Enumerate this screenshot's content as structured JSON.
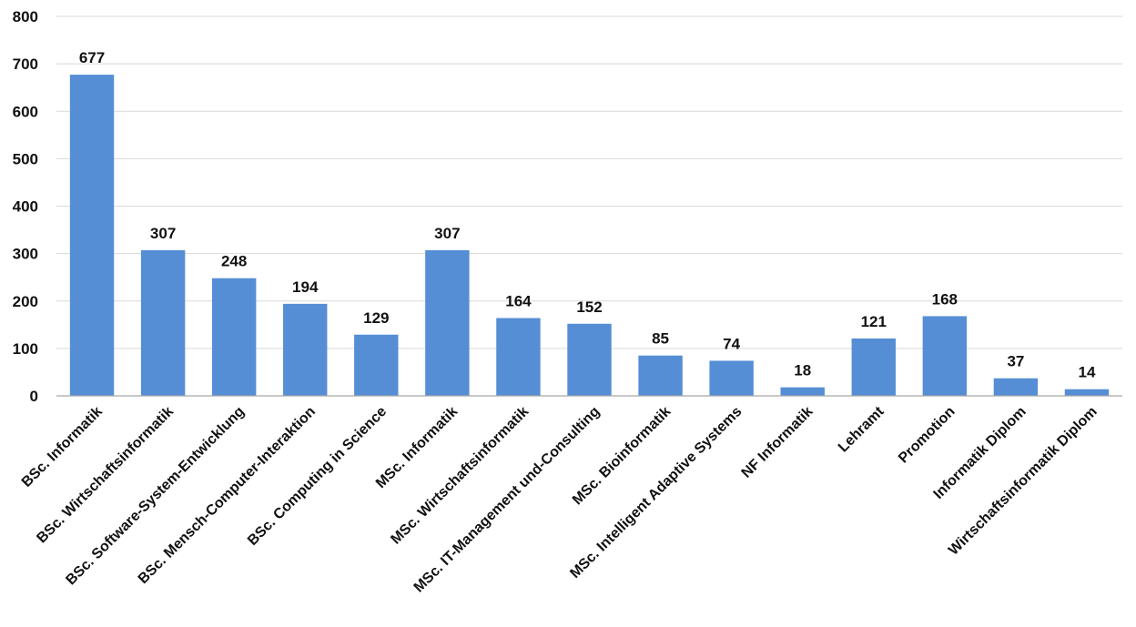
{
  "chart_data": {
    "type": "bar",
    "title": "",
    "xlabel": "",
    "ylabel": "",
    "ylim": [
      0,
      800
    ],
    "yticks": [
      0,
      100,
      200,
      300,
      400,
      500,
      600,
      700,
      800
    ],
    "grid": true,
    "legend": "none",
    "bar_color": "#558ed5",
    "categories": [
      "BSc. Informatik",
      "BSc. Wirtschaftsinformatik",
      "BSc. Software-System-Entwicklung",
      "BSc. Mensch-Computer-Interaktion",
      "BSc. Computing in Science",
      "MSc. Informatik",
      "MSc. Wirtschaftsinformatik",
      "MSc. IT-Management und-Consulting",
      "MSc. Bioinformatik",
      "MSc. Intelligent Adaptive Systems",
      "NF Informatik",
      "Lehramt",
      "Promotion",
      "Informatik Diplom",
      "Wirtschaftsinformatik Diplom"
    ],
    "values": [
      677,
      307,
      248,
      194,
      129,
      307,
      164,
      152,
      85,
      74,
      18,
      121,
      168,
      37,
      14
    ]
  }
}
